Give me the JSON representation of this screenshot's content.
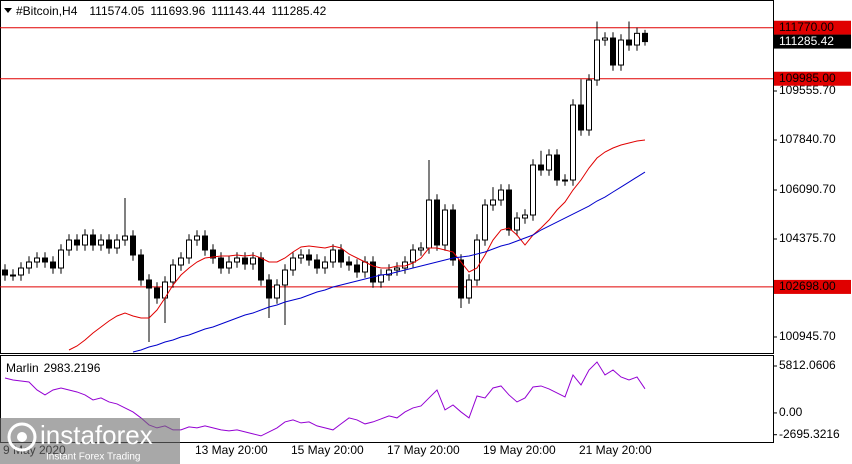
{
  "chart_data": [
    {
      "type": "candlestick",
      "title": "#Bitcoin,H4",
      "categories": [
        "9 May 2020",
        null,
        null,
        null,
        null,
        null,
        null,
        null,
        null,
        null,
        null,
        null,
        null,
        null,
        null,
        null,
        null,
        null,
        null,
        null,
        null,
        null,
        null,
        null,
        "13 May 20:00",
        null,
        null,
        null,
        null,
        null,
        null,
        null,
        null,
        null,
        null,
        null,
        "15 May 20:00",
        null,
        null,
        null,
        null,
        null,
        null,
        null,
        null,
        null,
        null,
        null,
        "17 May 20:00",
        null,
        null,
        null,
        null,
        null,
        null,
        null,
        null,
        null,
        null,
        null,
        "19 May 20:00",
        null,
        null,
        null,
        null,
        null,
        null,
        null,
        null,
        null,
        null,
        null,
        "21 May 20:00",
        null,
        null,
        null,
        null,
        null,
        null,
        null,
        null
      ],
      "ohlc": {
        "open": [
          103290,
          103115,
          103115,
          103360,
          103570,
          103710,
          103570,
          103360,
          103990,
          104340,
          104165,
          104515,
          104165,
          104340,
          104060,
          104340,
          104480,
          103815,
          102940,
          102660,
          102310,
          102870,
          103465,
          103710,
          104340,
          104480,
          103990,
          103710,
          103360,
          103570,
          103710,
          103500,
          103710,
          102940,
          102310,
          102765,
          103290,
          103710,
          103815,
          103640,
          103360,
          103570,
          103990,
          103570,
          103465,
          103220,
          103570,
          102870,
          103115,
          103290,
          103360,
          103570,
          103990,
          104060,
          105740,
          104165,
          105390,
          103640,
          102310,
          102940,
          104340,
          105565,
          105740,
          106090,
          104690,
          105110,
          105215,
          106965,
          106790,
          107315,
          106440,
          106440,
          109065,
          108190,
          109940,
          111340,
          111410,
          110465,
          111340,
          111165,
          111574.05
        ],
        "high": [
          103490,
          103315,
          103560,
          103770,
          103910,
          103910,
          103770,
          104190,
          104540,
          104540,
          104715,
          104715,
          104540,
          104540,
          104540,
          105810,
          104680,
          104015,
          103140,
          102860,
          103070,
          103665,
          103910,
          104540,
          104680,
          104680,
          104190,
          103910,
          103770,
          103910,
          103910,
          103910,
          103910,
          103140,
          102965,
          103490,
          103910,
          104015,
          104015,
          103840,
          103770,
          104190,
          104190,
          103770,
          103665,
          103770,
          103770,
          103315,
          103490,
          103560,
          103770,
          104190,
          104260,
          107140,
          105940,
          105590,
          105590,
          103840,
          103140,
          104540,
          105765,
          106190,
          106290,
          106290,
          105310,
          105415,
          107165,
          107465,
          107515,
          107515,
          106640,
          109265,
          109965,
          110140,
          111990,
          111610,
          111610,
          111540,
          111990,
          111774,
          111693.96
        ],
        "low": [
          102915,
          102915,
          102915,
          103160,
          103370,
          103370,
          103160,
          103160,
          103790,
          103965,
          103965,
          103965,
          103965,
          103860,
          103860,
          104140,
          103615,
          102740,
          100770,
          102110,
          101435,
          102670,
          103265,
          103510,
          104140,
          103790,
          103510,
          103160,
          103160,
          103370,
          103300,
          103300,
          102740,
          101610,
          102110,
          101365,
          103090,
          103510,
          103440,
          103160,
          103160,
          103370,
          103370,
          103265,
          103020,
          103020,
          102670,
          102670,
          102915,
          103090,
          103160,
          103370,
          103790,
          103860,
          103965,
          103965,
          103440,
          101960,
          102110,
          102740,
          104140,
          105365,
          105540,
          104490,
          104490,
          104910,
          105015,
          106590,
          106590,
          106240,
          106240,
          106240,
          107990,
          107990,
          109740,
          111140,
          110265,
          110265,
          110965,
          110965,
          111143.44
        ],
        "close": [
          103115,
          103115,
          103360,
          103570,
          103710,
          103570,
          103360,
          103990,
          104340,
          104165,
          104515,
          104165,
          104340,
          104060,
          104340,
          104480,
          103815,
          102940,
          102660,
          102310,
          102870,
          103465,
          103710,
          104340,
          104480,
          103990,
          103710,
          103360,
          103570,
          103710,
          103500,
          103710,
          102940,
          102310,
          102765,
          103290,
          103710,
          103815,
          103640,
          103360,
          103570,
          103990,
          103570,
          103465,
          103220,
          103570,
          102870,
          103115,
          103290,
          103360,
          103570,
          103990,
          104060,
          105740,
          104165,
          105390,
          103640,
          102310,
          102940,
          104340,
          105565,
          105740,
          106090,
          104690,
          105110,
          105215,
          106965,
          106790,
          107315,
          106440,
          106440,
          109065,
          108190,
          109940,
          111340,
          111410,
          110465,
          111340,
          111165,
          111574,
          111285.42
        ]
      },
      "bull_color": "#ffffff",
      "bear_color": "#000000",
      "series": [
        {
          "color": "#e00000",
          "values": [
            null,
            null,
            null,
            null,
            null,
            null,
            null,
            null,
            100490,
            100630,
            100840,
            101085,
            101295,
            101505,
            101680,
            101785,
            101680,
            101610,
            101610,
            101890,
            102310,
            102765,
            103115,
            103360,
            103570,
            103710,
            103745,
            103780,
            103780,
            103815,
            103780,
            103815,
            103710,
            103570,
            103570,
            103710,
            103920,
            104095,
            104130,
            104095,
            104060,
            104130,
            104060,
            103850,
            103710,
            103570,
            103430,
            103360,
            103360,
            103430,
            103430,
            103535,
            103710,
            104060,
            104060,
            103990,
            103920,
            103570,
            103220,
            103360,
            103815,
            104340,
            104690,
            104760,
            104515,
            104165,
            104515,
            104760,
            105040,
            105390,
            105670,
            106090,
            106440,
            106860,
            107210,
            107420,
            107560,
            107665,
            107735,
            107805,
            107840
          ]
        },
        {
          "color": "#0000cc",
          "values": [
            null,
            null,
            null,
            null,
            null,
            null,
            null,
            null,
            null,
            null,
            null,
            null,
            null,
            null,
            null,
            null,
            100420,
            100490,
            100595,
            100665,
            100770,
            100840,
            100945,
            101015,
            101120,
            101225,
            101295,
            101400,
            101505,
            101610,
            101715,
            101785,
            101890,
            101995,
            102065,
            102170,
            102240,
            102310,
            102415,
            102520,
            102590,
            102695,
            102765,
            102835,
            102905,
            102975,
            103045,
            103115,
            103150,
            103220,
            103290,
            103360,
            103430,
            103500,
            103570,
            103640,
            103710,
            103745,
            103780,
            103850,
            103920,
            104025,
            104130,
            104200,
            104305,
            104410,
            104515,
            104690,
            104830,
            104970,
            105110,
            105250,
            105390,
            105530,
            105705,
            105845,
            106020,
            106195,
            106370,
            106545,
            106720
          ]
        }
      ],
      "hlines": [
        {
          "value": 111770,
          "label": "111770.00"
        },
        {
          "value": 109985,
          "label": "109985.00"
        },
        {
          "value": 102698,
          "label": "102698.00"
        }
      ],
      "hline_color": "#e00000",
      "ylim": [
        100420,
        112636
      ],
      "yticks": [
        {
          "value": 109555.7,
          "label": "109555.70"
        },
        {
          "value": 107840.7,
          "label": "107840.70"
        },
        {
          "value": 106090.7,
          "label": "106090.70"
        },
        {
          "value": 104375.7,
          "label": "104375.70"
        },
        {
          "value": 100945.7,
          "label": "100945.70"
        }
      ]
    },
    {
      "type": "line",
      "title": "Marlin",
      "series": [
        {
          "color": "#9400d3",
          "values": [
            4328,
            4081,
            3957,
            3833,
            2844,
            2226,
            2844,
            3092,
            2844,
            2597,
            2226,
            1608,
            1855,
            1360,
            1113,
            618,
            124,
            -618,
            -1484,
            -1855,
            -1608,
            -2102,
            -2102,
            -1731,
            -1855,
            -1608,
            -1855,
            -2102,
            -2226,
            -2102,
            -2350,
            -2597,
            -2844,
            -2350,
            -1855,
            -1113,
            -866,
            -1237,
            -1113,
            -1608,
            -1855,
            -2102,
            -1360,
            -618,
            -866,
            -1360,
            -1113,
            -742,
            -371,
            -618,
            124,
            618,
            866,
            1855,
            2844,
            371,
            989,
            124,
            -618,
            2102,
            1855,
            3092,
            3339,
            2226,
            1360,
            1855,
            3215,
            3339,
            2968,
            2473,
            1979,
            4699,
            3462,
            5317,
            6307,
            4699,
            5317,
            4452,
            4081,
            4452,
            2983.2196
          ]
        }
      ],
      "ylim": [
        -3600,
        7050
      ],
      "yticks": [
        5812.0606,
        {
          "value": 0,
          "label": "0.00"
        },
        -2695.3216
      ]
    }
  ],
  "watermark": {
    "brand": "instaforex",
    "tagline": "Instant Forex Trading"
  }
}
